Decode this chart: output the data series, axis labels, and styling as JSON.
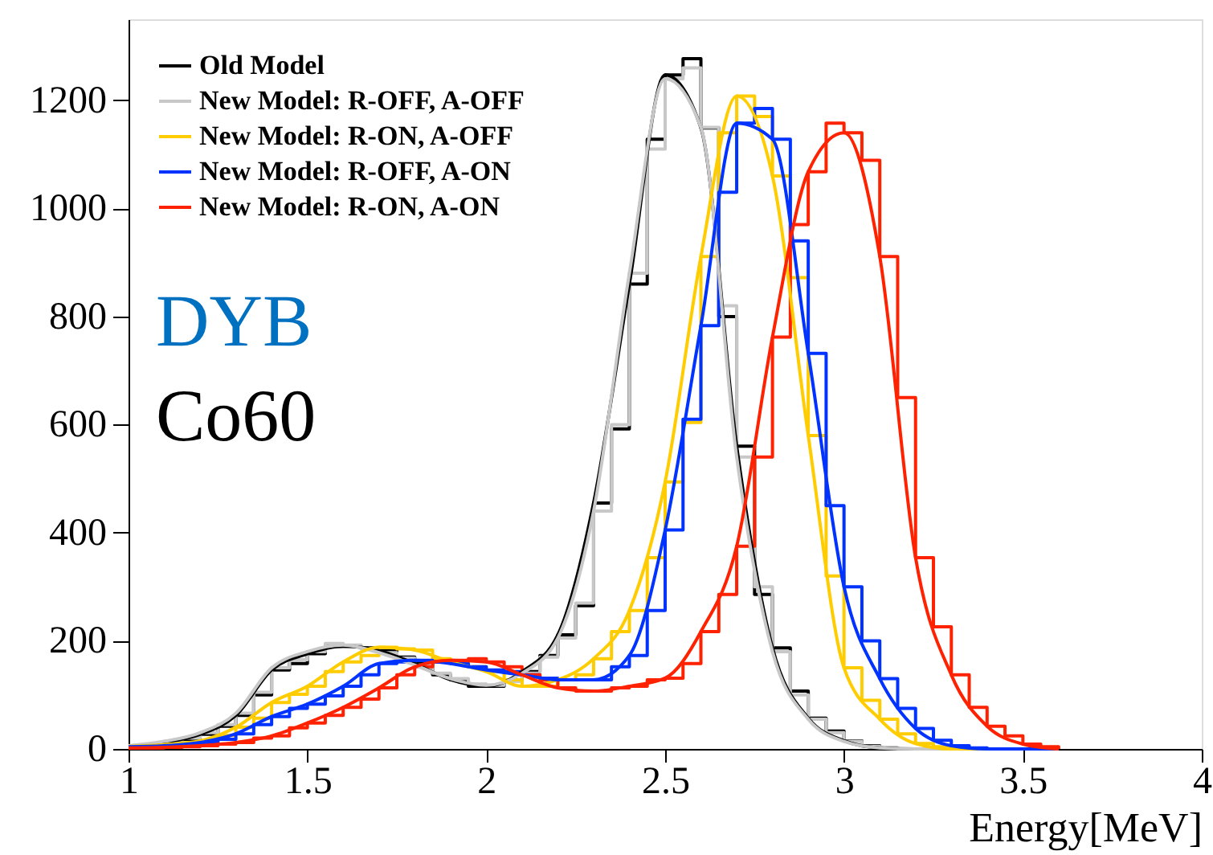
{
  "chart_data": {
    "type": "step",
    "xlabel": "Energy[MeV]",
    "xlim": [
      1,
      4
    ],
    "ylim": [
      0,
      1350
    ],
    "xticks": [
      1,
      1.5,
      2,
      2.5,
      3,
      3.5,
      4
    ],
    "yticks": [
      0,
      200,
      400,
      600,
      800,
      1000,
      1200
    ],
    "grid": false,
    "legend": "top left",
    "annotations": [
      "DYB",
      "Co60"
    ],
    "x": [
      1.0,
      1.05,
      1.1,
      1.15,
      1.2,
      1.25,
      1.3,
      1.35,
      1.4,
      1.45,
      1.5,
      1.55,
      1.6,
      1.65,
      1.7,
      1.75,
      1.8,
      1.85,
      1.9,
      1.95,
      2.0,
      2.05,
      2.1,
      2.15,
      2.2,
      2.25,
      2.3,
      2.35,
      2.4,
      2.45,
      2.5,
      2.55,
      2.6,
      2.65,
      2.7,
      2.75,
      2.8,
      2.85,
      2.9,
      2.95,
      3.0,
      3.05,
      3.1,
      3.15,
      3.2,
      3.25,
      3.3,
      3.35,
      3.4,
      3.45,
      3.5,
      3.55,
      3.6
    ],
    "series": [
      {
        "name": "Old Model",
        "type": "step",
        "color": "#000000",
        "values": [
          5,
          8,
          12,
          18,
          27,
          42,
          62,
          100,
          146,
          158,
          176,
          190,
          190,
          187,
          182,
          170,
          158,
          137,
          128,
          116,
          116,
          128,
          143,
          173,
          211,
          265,
          455,
          592,
          860,
          1128,
          1247,
          1277,
          1149,
          800,
          560,
          286,
          187,
          107,
          57,
          33,
          15,
          6,
          2,
          0,
          0,
          0,
          0,
          0,
          0,
          0,
          null,
          null,
          null
        ]
      },
      {
        "name": "New Model: R-OFF, A-OFF",
        "type": "step",
        "color": "#c8c8c8",
        "values": [
          6,
          9,
          14,
          20,
          30,
          45,
          66,
          105,
          150,
          165,
          180,
          195,
          192,
          185,
          178,
          168,
          155,
          140,
          130,
          120,
          118,
          125,
          140,
          170,
          205,
          270,
          440,
          600,
          880,
          1110,
          1240,
          1260,
          1150,
          820,
          540,
          300,
          180,
          100,
          55,
          30,
          14,
          5,
          2,
          0,
          0,
          0,
          0,
          0,
          0,
          0,
          null,
          null,
          null
        ]
      },
      {
        "name": "New Model: R-ON, A-OFF",
        "type": "step",
        "color": "#ffcc00",
        "values": [
          5,
          6,
          8,
          11,
          15,
          25,
          40,
          57,
          86,
          101,
          116,
          143,
          161,
          173,
          188,
          185,
          183,
          167,
          161,
          152,
          143,
          128,
          116,
          116,
          128,
          137,
          167,
          217,
          256,
          354,
          494,
          604,
          911,
          1140,
          1208,
          1170,
          1060,
          872,
          580,
          320,
          150,
          90,
          55,
          28,
          10,
          4,
          0,
          0,
          0,
          null,
          null,
          null,
          null
        ]
      },
      {
        "name": "New Model: R-OFF, A-ON",
        "type": "step",
        "color": "#0033ff",
        "values": [
          4,
          5,
          6,
          9,
          12,
          18,
          28,
          45,
          60,
          75,
          83,
          98,
          116,
          137,
          158,
          161,
          164,
          161,
          158,
          152,
          146,
          143,
          137,
          131,
          128,
          128,
          128,
          152,
          173,
          256,
          405,
          610,
          783,
          1030,
          1158,
          1185,
          1128,
          940,
          732,
          450,
          300,
          200,
          130,
          75,
          38,
          16,
          6,
          2,
          0,
          0,
          0,
          0,
          0
        ]
      },
      {
        "name": "New Model: R-ON, A-ON",
        "type": "step",
        "color": "#ff2200",
        "values": [
          2,
          2,
          3,
          4,
          6,
          9,
          12,
          20,
          24,
          39,
          48,
          62,
          77,
          92,
          113,
          137,
          152,
          161,
          164,
          167,
          161,
          152,
          137,
          128,
          113,
          107,
          107,
          113,
          116,
          128,
          131,
          158,
          217,
          286,
          375,
          540,
          762,
          970,
          1068,
          1158,
          1140,
          1089,
          911,
          650,
          354,
          226,
          137,
          77,
          42,
          24,
          9,
          4,
          0
        ]
      },
      {
        "type": "line",
        "color": "#000000",
        "x": [
          1.0,
          1.1,
          1.2,
          1.3,
          1.4,
          1.5,
          1.6,
          1.7,
          1.8,
          1.9,
          2.0,
          2.1,
          2.2,
          2.3,
          2.4,
          2.5,
          2.6,
          2.7,
          2.8,
          2.9,
          3.0,
          3.1,
          3.2,
          3.3,
          3.4,
          3.5,
          3.6
        ],
        "values": [
          5,
          12,
          27,
          62,
          146,
          176,
          190,
          182,
          158,
          128,
          116,
          143,
          211,
          455,
          860,
          1247,
          1149,
          560,
          187,
          57,
          15,
          2,
          0,
          0,
          0,
          0,
          0
        ]
      },
      {
        "type": "line",
        "color": "#c8c8c8",
        "x": [
          1.0,
          1.1,
          1.2,
          1.3,
          1.4,
          1.5,
          1.6,
          1.7,
          1.8,
          1.9,
          2.0,
          2.1,
          2.2,
          2.3,
          2.4,
          2.5,
          2.6,
          2.7,
          2.8,
          2.9,
          3.0,
          3.1,
          3.2,
          3.3,
          3.4,
          3.5,
          3.6
        ],
        "values": [
          6,
          14,
          30,
          66,
          150,
          180,
          192,
          178,
          155,
          130,
          118,
          140,
          205,
          440,
          880,
          1240,
          1150,
          540,
          180,
          55,
          14,
          2,
          0,
          0,
          0,
          0,
          0
        ]
      },
      {
        "type": "line",
        "color": "#ffcc00",
        "x": [
          1.0,
          1.1,
          1.2,
          1.3,
          1.4,
          1.5,
          1.6,
          1.7,
          1.8,
          1.9,
          2.0,
          2.1,
          2.2,
          2.3,
          2.4,
          2.5,
          2.6,
          2.7,
          2.8,
          2.9,
          3.0,
          3.1,
          3.2,
          3.3,
          3.4,
          3.5,
          3.6
        ],
        "values": [
          5,
          8,
          15,
          40,
          86,
          116,
          161,
          188,
          183,
          161,
          143,
          116,
          128,
          167,
          256,
          494,
          911,
          1208,
          1060,
          580,
          150,
          55,
          10,
          0,
          0,
          0,
          0
        ]
      },
      {
        "type": "line",
        "color": "#0033ff",
        "x": [
          1.0,
          1.1,
          1.2,
          1.3,
          1.4,
          1.5,
          1.6,
          1.7,
          1.8,
          1.9,
          2.0,
          2.1,
          2.2,
          2.3,
          2.4,
          2.5,
          2.6,
          2.7,
          2.8,
          2.9,
          3.0,
          3.1,
          3.2,
          3.3,
          3.4,
          3.5,
          3.6
        ],
        "values": [
          4,
          6,
          12,
          28,
          60,
          83,
          116,
          158,
          164,
          158,
          146,
          137,
          128,
          128,
          173,
          405,
          783,
          1158,
          1128,
          732,
          300,
          130,
          38,
          6,
          0,
          0,
          0
        ]
      },
      {
        "type": "line",
        "color": "#ff2200",
        "x": [
          1.0,
          1.1,
          1.2,
          1.3,
          1.4,
          1.5,
          1.6,
          1.7,
          1.8,
          1.9,
          2.0,
          2.1,
          2.2,
          2.3,
          2.4,
          2.5,
          2.6,
          2.7,
          2.8,
          2.9,
          3.0,
          3.1,
          3.2,
          3.3,
          3.4,
          3.5,
          3.6
        ],
        "values": [
          2,
          3,
          6,
          12,
          24,
          48,
          77,
          113,
          152,
          164,
          161,
          137,
          113,
          107,
          116,
          131,
          217,
          375,
          762,
          1068,
          1140,
          911,
          354,
          137,
          42,
          9,
          0
        ]
      }
    ]
  }
}
